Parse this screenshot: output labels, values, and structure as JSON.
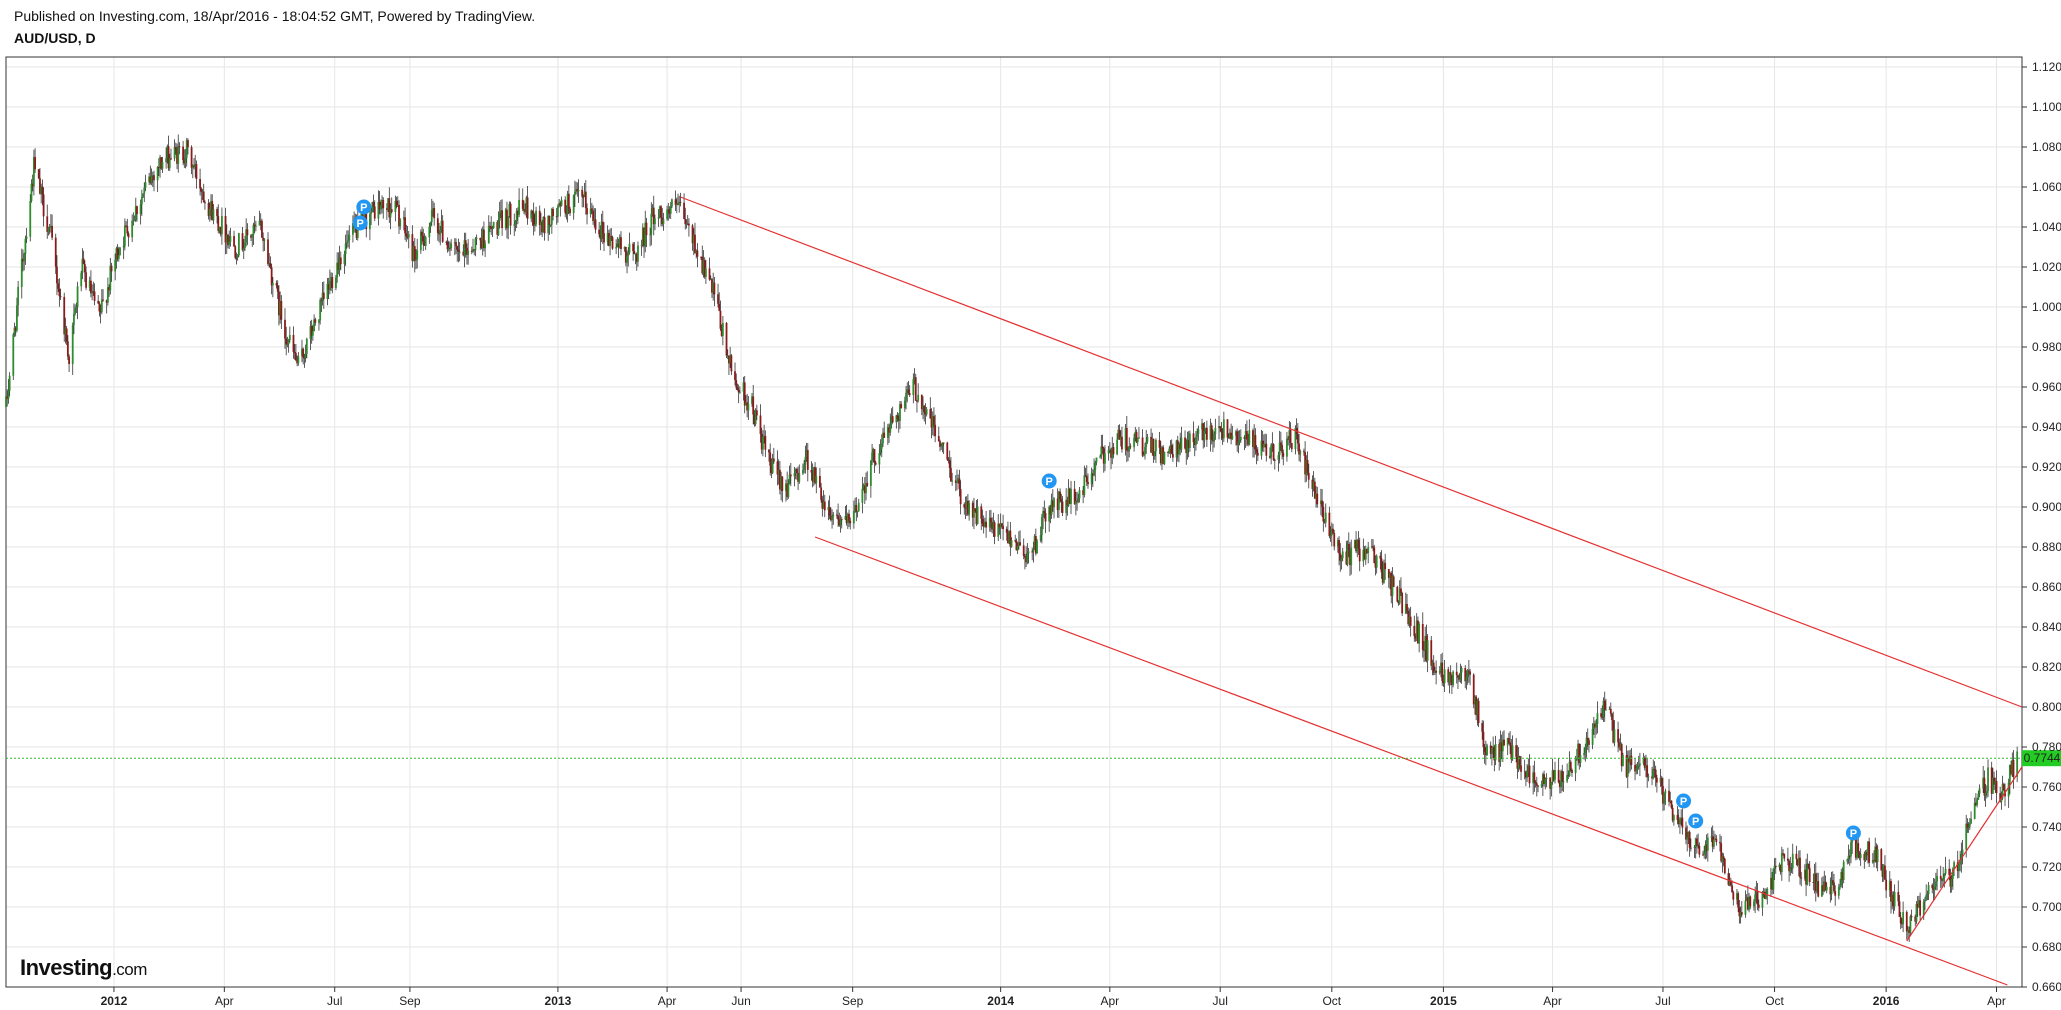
{
  "header": {
    "published": "Published on Investing.com, 18/Apr/2016 - 18:04:52 GMT, Powered by TradingView.",
    "symbol": "AUD/USD, D"
  },
  "logo": {
    "brand": "Investing",
    "suffix": ".com"
  },
  "colors": {
    "up": "#2e8b2e",
    "down": "#8b1a1a",
    "wick": "#333333",
    "trendline": "#e53030",
    "price_line": "#2fbf2f",
    "price_badge": "#22cc22",
    "marker": "#2196f3",
    "grid": "#e6e6e6"
  },
  "chart_data": {
    "type": "candlestick",
    "grid": true,
    "ylim": [
      0.66,
      1.125
    ],
    "y_ticks": [
      "1.1200",
      "1.1000",
      "1.0800",
      "1.0600",
      "1.0400",
      "1.0200",
      "1.0000",
      "0.9800",
      "0.9600",
      "0.9400",
      "0.9200",
      "0.9000",
      "0.8800",
      "0.8600",
      "0.8400",
      "0.8200",
      "0.8000",
      "0.7800",
      "0.7600",
      "0.7400",
      "0.7200",
      "0.7000",
      "0.6800",
      "0.6600"
    ],
    "x_ticks": [
      {
        "label": "2012",
        "date": "2012-01-01",
        "year": true
      },
      {
        "label": "Apr",
        "date": "2012-04-01"
      },
      {
        "label": "Jul",
        "date": "2012-07-01"
      },
      {
        "label": "Sep",
        "date": "2012-09-01"
      },
      {
        "label": "2013",
        "date": "2013-01-01",
        "year": true
      },
      {
        "label": "Apr",
        "date": "2013-04-01"
      },
      {
        "label": "Jun",
        "date": "2013-06-01"
      },
      {
        "label": "Sep",
        "date": "2013-09-01"
      },
      {
        "label": "2014",
        "date": "2014-01-01",
        "year": true
      },
      {
        "label": "Apr",
        "date": "2014-04-01"
      },
      {
        "label": "Jul",
        "date": "2014-07-01"
      },
      {
        "label": "Oct",
        "date": "2014-10-01"
      },
      {
        "label": "2015",
        "date": "2015-01-01",
        "year": true
      },
      {
        "label": "Apr",
        "date": "2015-04-01"
      },
      {
        "label": "Jul",
        "date": "2015-07-01"
      },
      {
        "label": "Oct",
        "date": "2015-10-01"
      },
      {
        "label": "2016",
        "date": "2016-01-01",
        "year": true
      },
      {
        "label": "Apr",
        "date": "2016-04-01"
      }
    ],
    "xlim": [
      "2011-10-04",
      "2016-04-22"
    ],
    "last_price": 0.7744,
    "last_price_label": "0.7744",
    "close_path": [
      [
        "2011-10-04",
        0.95
      ],
      [
        "2011-10-15",
        1.01
      ],
      [
        "2011-10-27",
        1.07
      ],
      [
        "2011-11-10",
        1.035
      ],
      [
        "2011-11-25",
        0.975
      ],
      [
        "2011-12-05",
        1.02
      ],
      [
        "2011-12-20",
        0.995
      ],
      [
        "2012-01-05",
        1.03
      ],
      [
        "2012-01-20",
        1.05
      ],
      [
        "2012-02-05",
        1.07
      ],
      [
        "2012-02-15",
        1.075
      ],
      [
        "2012-03-01",
        1.078
      ],
      [
        "2012-03-20",
        1.05
      ],
      [
        "2012-04-10",
        1.03
      ],
      [
        "2012-05-01",
        1.04
      ],
      [
        "2012-05-20",
        0.99
      ],
      [
        "2012-06-01",
        0.97
      ],
      [
        "2012-06-20",
        1.0
      ],
      [
        "2012-07-05",
        1.025
      ],
      [
        "2012-07-20",
        1.04
      ],
      [
        "2012-08-05",
        1.05
      ],
      [
        "2012-08-20",
        1.05
      ],
      [
        "2012-09-05",
        1.025
      ],
      [
        "2012-09-20",
        1.045
      ],
      [
        "2012-10-10",
        1.025
      ],
      [
        "2012-11-01",
        1.035
      ],
      [
        "2012-11-20",
        1.045
      ],
      [
        "2012-12-05",
        1.05
      ],
      [
        "2012-12-20",
        1.04
      ],
      [
        "2013-01-05",
        1.05
      ],
      [
        "2013-01-20",
        1.055
      ],
      [
        "2013-02-10",
        1.035
      ],
      [
        "2013-03-05",
        1.025
      ],
      [
        "2013-03-20",
        1.045
      ],
      [
        "2013-04-10",
        1.05
      ],
      [
        "2013-04-25",
        1.03
      ],
      [
        "2013-05-10",
        1.005
      ],
      [
        "2013-05-25",
        0.965
      ],
      [
        "2013-06-10",
        0.95
      ],
      [
        "2013-06-25",
        0.92
      ],
      [
        "2013-07-10",
        0.91
      ],
      [
        "2013-07-25",
        0.925
      ],
      [
        "2013-08-10",
        0.9
      ],
      [
        "2013-08-30",
        0.89
      ],
      [
        "2013-09-15",
        0.92
      ],
      [
        "2013-10-05",
        0.945
      ],
      [
        "2013-10-22",
        0.96
      ],
      [
        "2013-11-10",
        0.935
      ],
      [
        "2013-11-30",
        0.905
      ],
      [
        "2013-12-20",
        0.89
      ],
      [
        "2014-01-10",
        0.885
      ],
      [
        "2014-01-25",
        0.875
      ],
      [
        "2014-02-10",
        0.9
      ],
      [
        "2014-03-05",
        0.905
      ],
      [
        "2014-03-25",
        0.925
      ],
      [
        "2014-04-10",
        0.935
      ],
      [
        "2014-04-30",
        0.93
      ],
      [
        "2014-05-20",
        0.925
      ],
      [
        "2014-06-10",
        0.935
      ],
      [
        "2014-07-01",
        0.94
      ],
      [
        "2014-07-20",
        0.935
      ],
      [
        "2014-08-10",
        0.925
      ],
      [
        "2014-09-01",
        0.935
      ],
      [
        "2014-09-20",
        0.9
      ],
      [
        "2014-10-10",
        0.875
      ],
      [
        "2014-10-30",
        0.88
      ],
      [
        "2014-11-15",
        0.865
      ],
      [
        "2014-12-05",
        0.845
      ],
      [
        "2014-12-25",
        0.82
      ],
      [
        "2015-01-10",
        0.815
      ],
      [
        "2015-01-22",
        0.82
      ],
      [
        "2015-02-05",
        0.775
      ],
      [
        "2015-02-25",
        0.78
      ],
      [
        "2015-03-20",
        0.76
      ],
      [
        "2015-04-10",
        0.765
      ],
      [
        "2015-04-30",
        0.785
      ],
      [
        "2015-05-15",
        0.8
      ],
      [
        "2015-05-30",
        0.77
      ],
      [
        "2015-06-20",
        0.77
      ],
      [
        "2015-07-10",
        0.745
      ],
      [
        "2015-07-30",
        0.73
      ],
      [
        "2015-08-15",
        0.735
      ],
      [
        "2015-09-01",
        0.7
      ],
      [
        "2015-09-20",
        0.705
      ],
      [
        "2015-10-10",
        0.725
      ],
      [
        "2015-10-30",
        0.715
      ],
      [
        "2015-11-15",
        0.705
      ],
      [
        "2015-12-05",
        0.73
      ],
      [
        "2015-12-25",
        0.725
      ],
      [
        "2016-01-10",
        0.7
      ],
      [
        "2016-01-20",
        0.69
      ],
      [
        "2016-02-05",
        0.71
      ],
      [
        "2016-02-25",
        0.715
      ],
      [
        "2016-03-10",
        0.745
      ],
      [
        "2016-03-25",
        0.765
      ],
      [
        "2016-04-05",
        0.755
      ],
      [
        "2016-04-18",
        0.7744
      ]
    ],
    "trendlines": [
      {
        "name": "channel-top",
        "from": [
          "2013-04-12",
          1.055
        ],
        "to": [
          "2016-04-22",
          0.8
        ]
      },
      {
        "name": "channel-bottom",
        "from": [
          "2013-08-01",
          0.885
        ],
        "to": [
          "2016-04-10",
          0.661
        ]
      },
      {
        "name": "support-2016",
        "from": [
          "2016-01-18",
          0.683
        ],
        "to": [
          "2016-04-22",
          0.77
        ]
      }
    ],
    "markers": [
      {
        "date": "2012-07-25",
        "price": 1.05,
        "label": "P"
      },
      {
        "date": "2012-07-22",
        "price": 1.042,
        "label": "P"
      },
      {
        "date": "2014-02-10",
        "price": 0.913,
        "label": "P"
      },
      {
        "date": "2015-07-18",
        "price": 0.753,
        "label": "P"
      },
      {
        "date": "2015-07-28",
        "price": 0.743,
        "label": "P"
      },
      {
        "date": "2015-12-05",
        "price": 0.737,
        "label": "P"
      }
    ]
  }
}
